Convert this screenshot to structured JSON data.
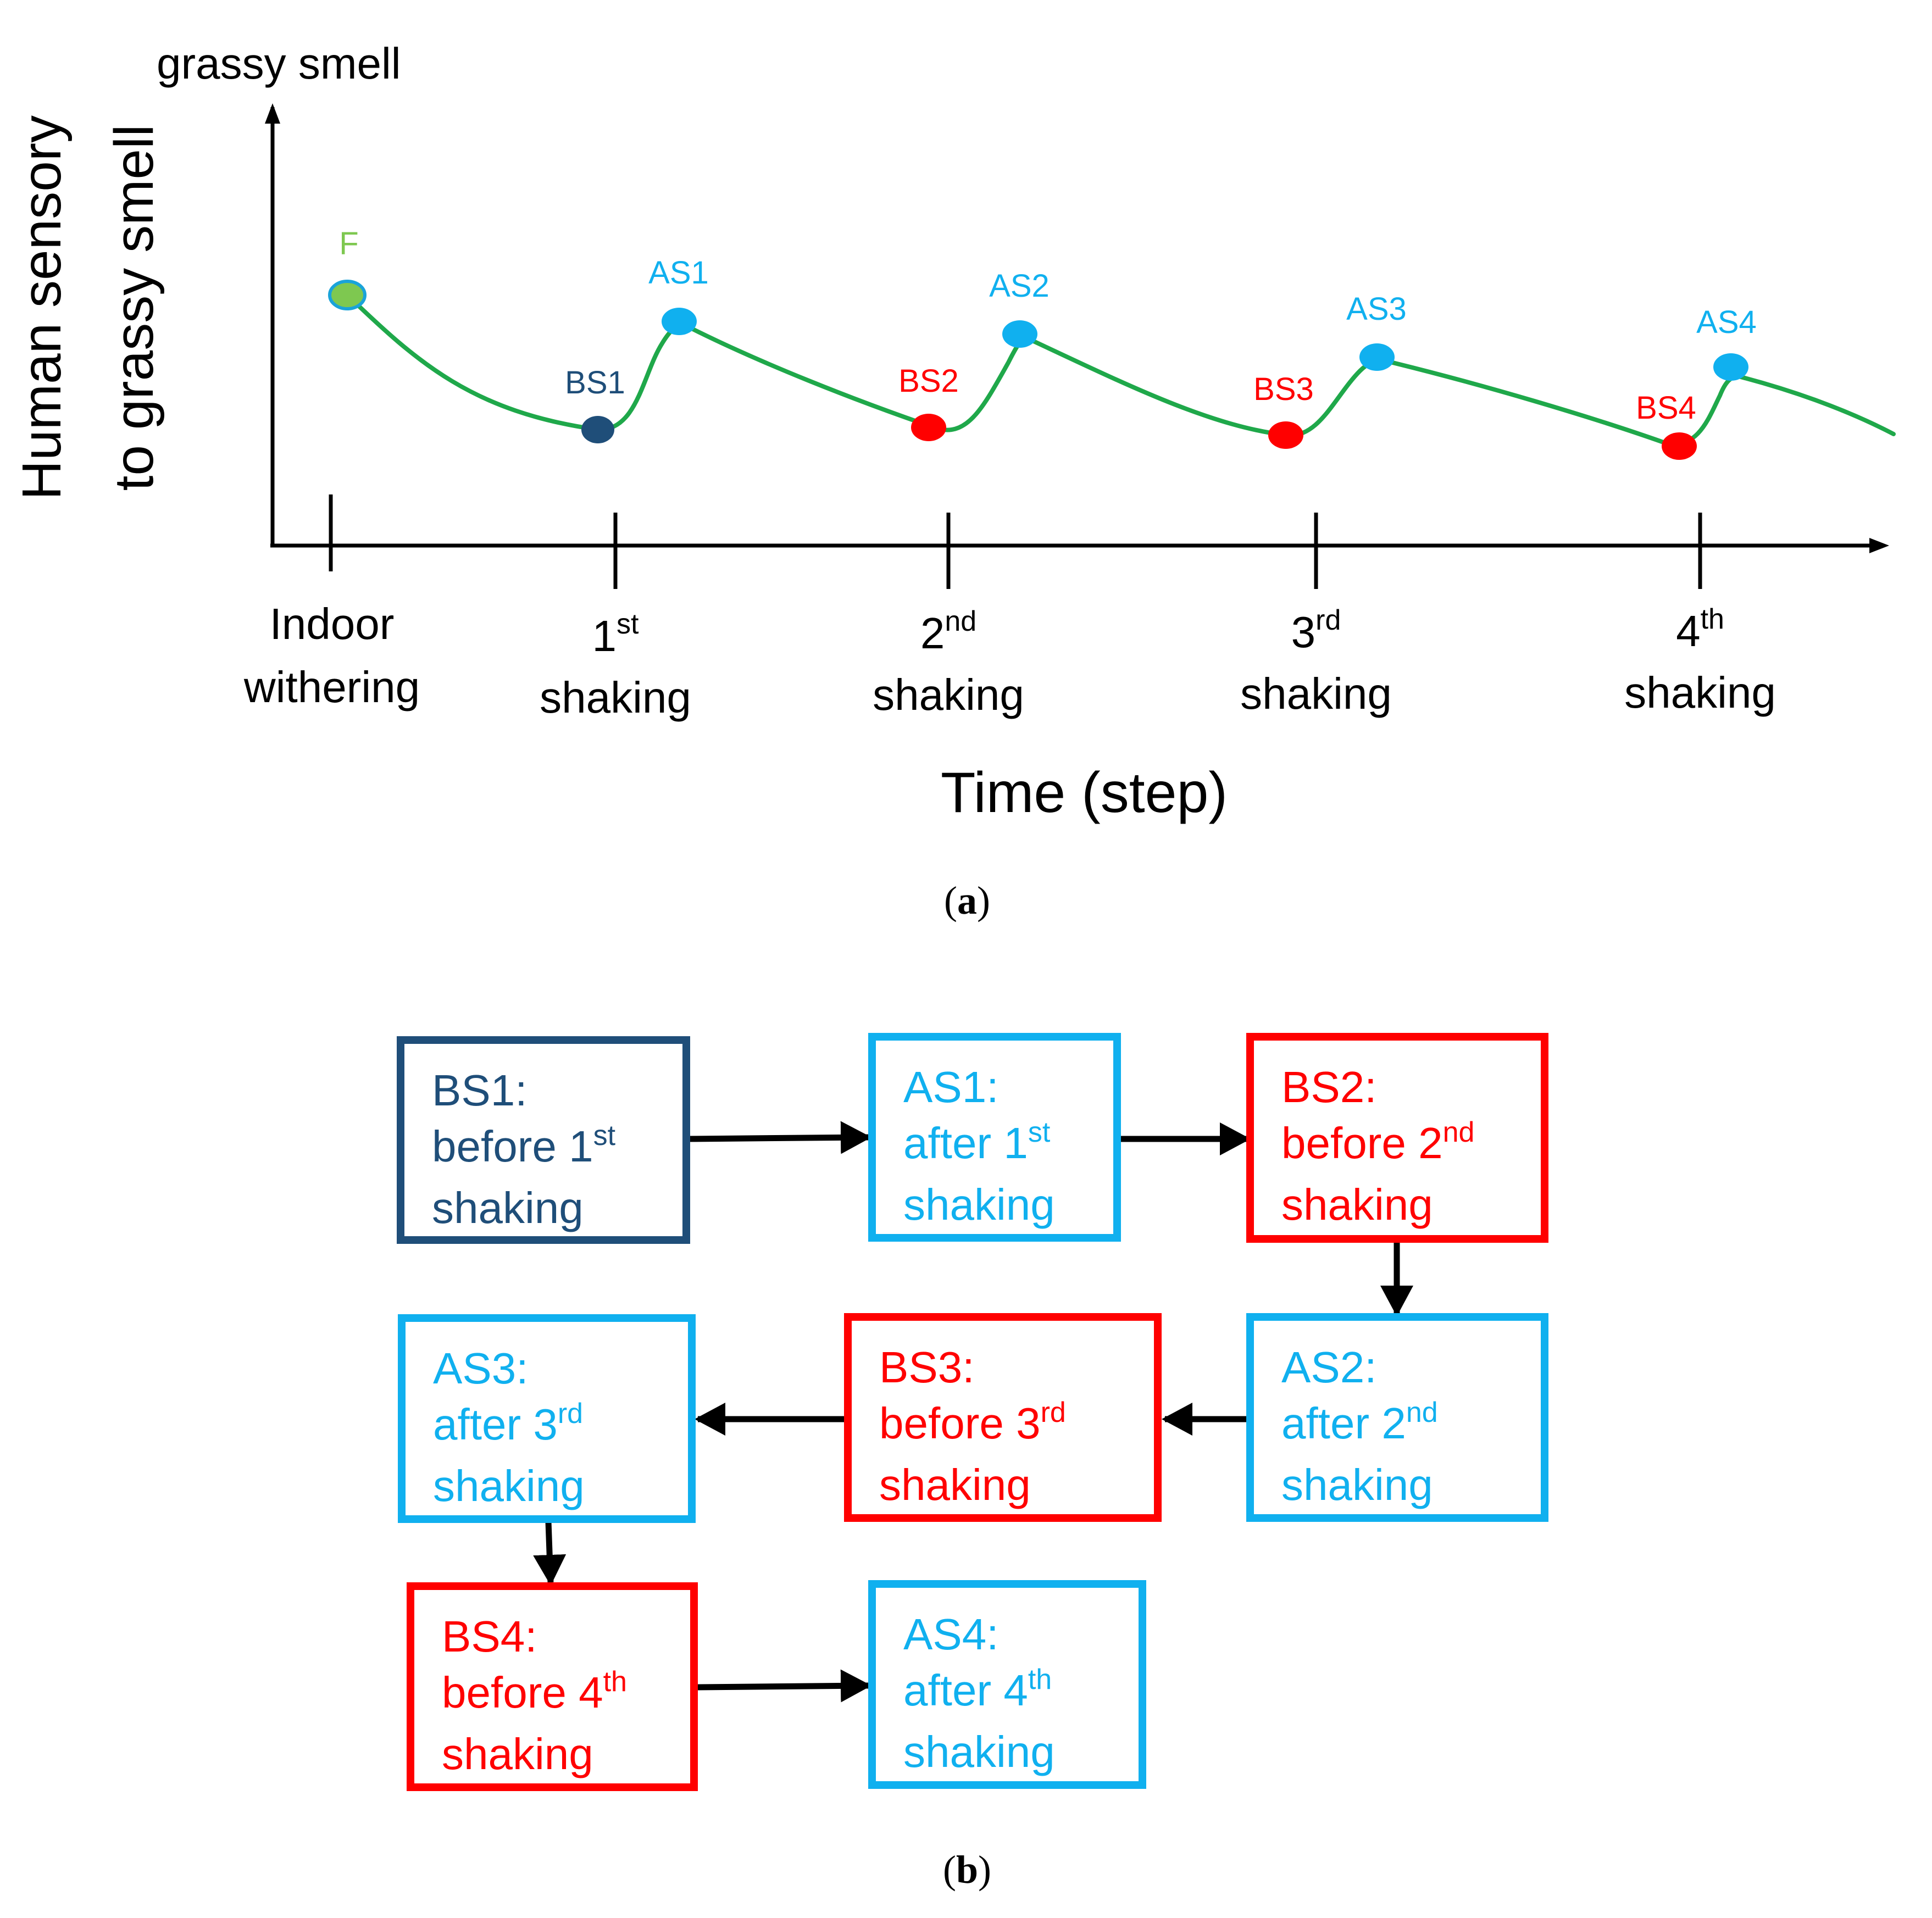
{
  "panel_a": {
    "caption": "a",
    "y_axis_top_label": "grassy smell",
    "y_axis_title_line1": "Human sensory",
    "y_axis_title_line2": "to grassy smell",
    "x_axis_title": "Time (step)",
    "x_ticks": [
      {
        "line1": "Indoor",
        "line2": "withering",
        "sup": ""
      },
      {
        "line1": "1",
        "sup": "st",
        "line2": "shaking"
      },
      {
        "line1": "2",
        "sup": "nd",
        "line2": "shaking"
      },
      {
        "line1": "3",
        "sup": "rd",
        "line2": "shaking"
      },
      {
        "line1": "4",
        "sup": "th",
        "line2": "shaking"
      }
    ],
    "points": [
      {
        "label": "F",
        "color": "#7ec850"
      },
      {
        "label": "BS1",
        "color": "#1f4e79"
      },
      {
        "label": "AS1",
        "color": "#10b0ef"
      },
      {
        "label": "BS2",
        "color": "#ff0000"
      },
      {
        "label": "AS2",
        "color": "#10b0ef"
      },
      {
        "label": "BS3",
        "color": "#ff0000"
      },
      {
        "label": "AS3",
        "color": "#10b0ef"
      },
      {
        "label": "BS4",
        "color": "#ff0000"
      },
      {
        "label": "AS4",
        "color": "#10b0ef"
      }
    ],
    "curve_color": "#1fa84a"
  },
  "panel_b": {
    "caption": "b",
    "boxes": [
      {
        "id": "bs1",
        "title": "BS1:",
        "word": "before",
        "num": "1",
        "sup": "st",
        "tail": "shaking",
        "color": "#1f4e79"
      },
      {
        "id": "as1",
        "title": "AS1:",
        "word": "after",
        "num": "1",
        "sup": "st",
        "tail": "shaking",
        "color": "#10b0ef"
      },
      {
        "id": "bs2",
        "title": "BS2:",
        "word": "before",
        "num": "2",
        "sup": "nd",
        "tail": "shaking",
        "color": "#ff0000"
      },
      {
        "id": "as2",
        "title": "AS2:",
        "word": "after",
        "num": "2",
        "sup": "nd",
        "tail": "shaking",
        "color": "#10b0ef"
      },
      {
        "id": "bs3",
        "title": "BS3:",
        "word": "before",
        "num": "3",
        "sup": "rd",
        "tail": "shaking",
        "color": "#ff0000"
      },
      {
        "id": "as3",
        "title": "AS3:",
        "word": "after",
        "num": "3",
        "sup": "rd",
        "tail": "shaking",
        "color": "#10b0ef"
      },
      {
        "id": "bs4",
        "title": "BS4:",
        "word": "before",
        "num": "4",
        "sup": "th",
        "tail": "shaking",
        "color": "#ff0000"
      },
      {
        "id": "as4",
        "title": "AS4:",
        "word": "after",
        "num": "4",
        "sup": "th",
        "tail": "shaking",
        "color": "#10b0ef"
      }
    ]
  }
}
